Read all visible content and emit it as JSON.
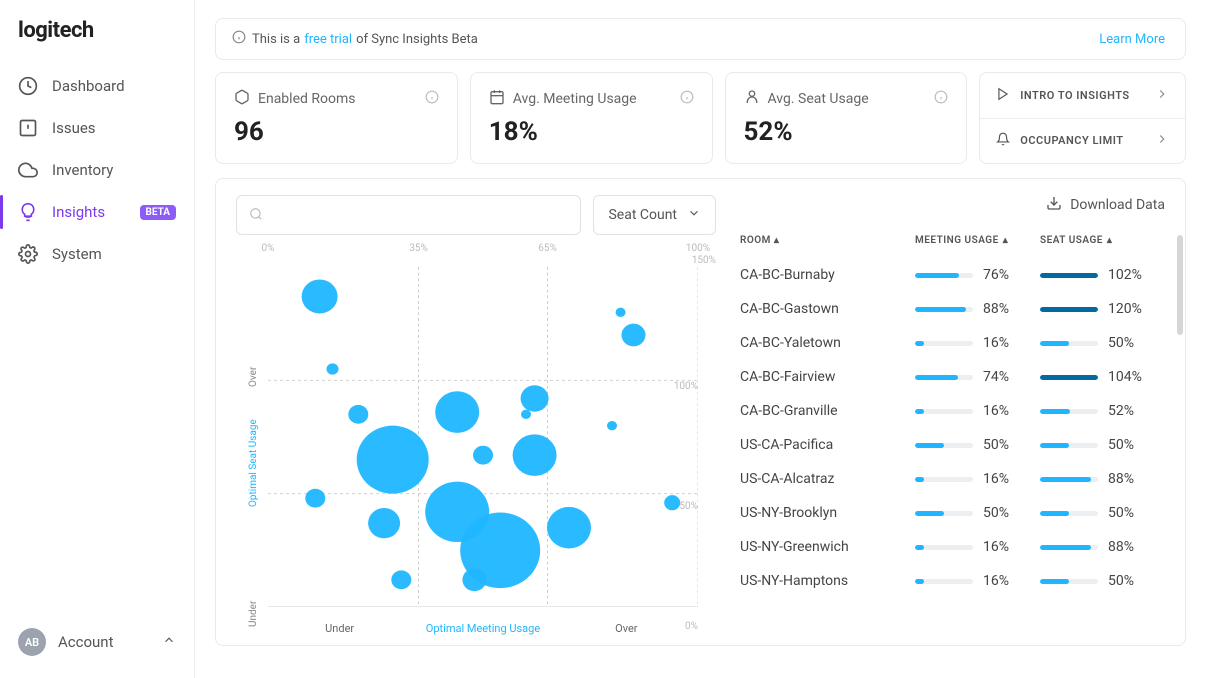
{
  "brand": "logitech",
  "sidebar": {
    "items": [
      {
        "label": "Dashboard",
        "icon": "dashboard-icon"
      },
      {
        "label": "Issues",
        "icon": "issues-icon"
      },
      {
        "label": "Inventory",
        "icon": "cloud-icon"
      },
      {
        "label": "Insights",
        "icon": "bulb-icon",
        "active": true,
        "badge": "BETA"
      },
      {
        "label": "System",
        "icon": "gear-icon"
      }
    ]
  },
  "account": {
    "initials": "AB",
    "label": "Account"
  },
  "banner": {
    "prefix": "This is a ",
    "link": "free trial",
    "suffix": " of Sync Insights Beta",
    "learn": "Learn More"
  },
  "stats": [
    {
      "label": "Enabled Rooms",
      "value": "96",
      "icon": "rooms-icon"
    },
    {
      "label": "Avg. Meeting Usage",
      "value": "18%",
      "icon": "calendar-icon"
    },
    {
      "label": "Avg. Seat Usage",
      "value": "52%",
      "icon": "seat-icon"
    }
  ],
  "link_card": [
    {
      "label": "INTRO TO INSIGHTS",
      "icon": "play-icon"
    },
    {
      "label": "OCCUPANCY LIMIT",
      "icon": "bell-icon"
    }
  ],
  "controls": {
    "search_placeholder": "",
    "select_label": "Seat Count",
    "download": "Download Data"
  },
  "chart": {
    "type": "scatter",
    "xlim": [
      0,
      100
    ],
    "ylim": [
      0,
      150
    ],
    "x_ticks": [
      {
        "pos": 0,
        "label": "0%"
      },
      {
        "pos": 35,
        "label": "35%"
      },
      {
        "pos": 65,
        "label": "65%"
      },
      {
        "pos": 100,
        "label": "100%"
      }
    ],
    "y_ticks": [
      {
        "pos": 0,
        "label": "0%"
      },
      {
        "pos": 50,
        "label": "50%"
      },
      {
        "pos": 100,
        "label": "100%"
      },
      {
        "pos": 150,
        "label": "150%"
      }
    ],
    "x_segments": [
      {
        "label": "Under",
        "opt": false
      },
      {
        "label": "Optimal Meeting Usage",
        "opt": true
      },
      {
        "label": "Over",
        "opt": false
      }
    ],
    "y_segments": [
      {
        "label": "Under"
      },
      {
        "label": "Optimal Seat Usage"
      },
      {
        "label": "Over"
      }
    ],
    "x_lines": [
      35,
      65
    ],
    "y_lines": [
      50,
      100
    ],
    "bubble_color": "#1fb6ff",
    "grid_color": "#cccccc",
    "background_color": "#ffffff",
    "axis_tick_fontsize": 10,
    "points": [
      {
        "x": 12,
        "y": 137,
        "r": 18
      },
      {
        "x": 15,
        "y": 105,
        "r": 6
      },
      {
        "x": 21,
        "y": 85,
        "r": 10
      },
      {
        "x": 29,
        "y": 65,
        "r": 36
      },
      {
        "x": 11,
        "y": 48,
        "r": 10
      },
      {
        "x": 27,
        "y": 37,
        "r": 16
      },
      {
        "x": 31,
        "y": 12,
        "r": 10
      },
      {
        "x": 44,
        "y": 86,
        "r": 22
      },
      {
        "x": 44,
        "y": 42,
        "r": 32
      },
      {
        "x": 50,
        "y": 67,
        "r": 10
      },
      {
        "x": 54,
        "y": 25,
        "r": 40
      },
      {
        "x": 48,
        "y": 12,
        "r": 12
      },
      {
        "x": 62,
        "y": 92,
        "r": 14
      },
      {
        "x": 60,
        "y": 85,
        "r": 5
      },
      {
        "x": 62,
        "y": 67,
        "r": 22
      },
      {
        "x": 70,
        "y": 35,
        "r": 22
      },
      {
        "x": 82,
        "y": 130,
        "r": 5
      },
      {
        "x": 85,
        "y": 120,
        "r": 12
      },
      {
        "x": 80,
        "y": 80,
        "r": 5
      },
      {
        "x": 94,
        "y": 46,
        "r": 8
      }
    ]
  },
  "table": {
    "headers": {
      "room": "ROOM",
      "meeting": "MEETING USAGE",
      "seat": "SEAT USAGE"
    },
    "meeting_color": "#1fb6ff",
    "seat_color_normal": "#1fb6ff",
    "seat_color_over": "#0369a1",
    "rows": [
      {
        "room": "CA-BC-Burnaby",
        "meeting": 76,
        "seat": 102
      },
      {
        "room": "CA-BC-Gastown",
        "meeting": 88,
        "seat": 120
      },
      {
        "room": "CA-BC-Yaletown",
        "meeting": 16,
        "seat": 50
      },
      {
        "room": "CA-BC-Fairview",
        "meeting": 74,
        "seat": 104
      },
      {
        "room": "CA-BC-Granville",
        "meeting": 16,
        "seat": 52
      },
      {
        "room": "US-CA-Pacifica",
        "meeting": 50,
        "seat": 50
      },
      {
        "room": "US-CA-Alcatraz",
        "meeting": 16,
        "seat": 88
      },
      {
        "room": "US-NY-Brooklyn",
        "meeting": 50,
        "seat": 50
      },
      {
        "room": "US-NY-Greenwich",
        "meeting": 16,
        "seat": 88
      },
      {
        "room": "US-NY-Hamptons",
        "meeting": 16,
        "seat": 50
      }
    ]
  }
}
